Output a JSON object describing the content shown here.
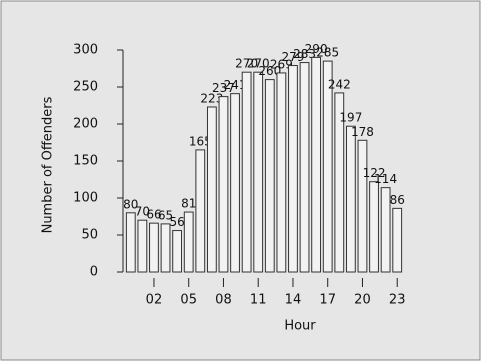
{
  "chart_data": {
    "type": "bar",
    "x_label": "Hour",
    "y_label": "Number of Offenders",
    "categories": [
      null,
      null,
      "02",
      null,
      null,
      "05",
      null,
      null,
      "08",
      null,
      null,
      "11",
      null,
      null,
      "14",
      null,
      null,
      "17",
      null,
      null,
      "20",
      null,
      null,
      "23"
    ],
    "values": [
      80,
      70,
      66,
      65,
      56,
      81,
      165,
      223,
      237,
      241,
      270,
      270,
      260,
      269,
      279,
      283,
      290,
      285,
      242,
      197,
      178,
      122,
      114,
      86
    ],
    "color": "#f2f2f2",
    "ylim": [
      0,
      300
    ],
    "yticks": [
      0,
      50,
      100,
      150,
      200,
      250,
      300
    ]
  }
}
